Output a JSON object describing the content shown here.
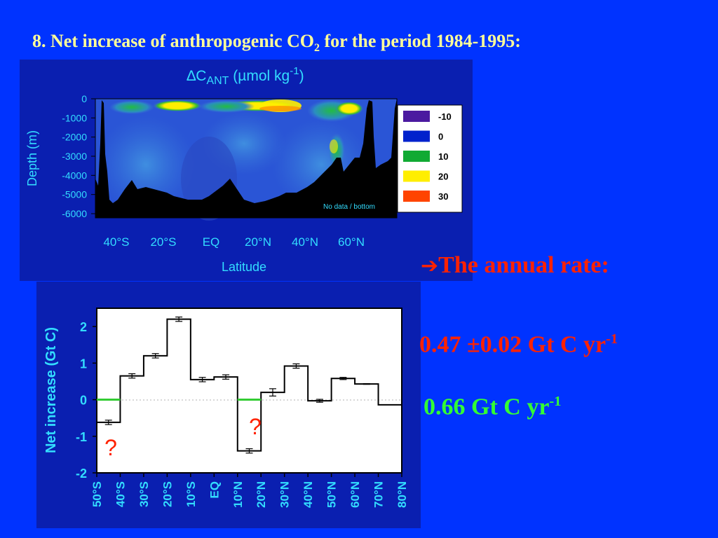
{
  "slide": {
    "title_prefix": "8. Net increase of anthropogenic CO",
    "title_sub": "2",
    "title_suffix": " for the period 1984-1995:"
  },
  "side": {
    "arrow_icon": "arrow-right-icon",
    "rate_heading": "The annual rate:",
    "rate1_value": "0.47 ±0.02 Gt C yr",
    "rate1_exp": "-1",
    "rate2_value": "0.66 Gt C yr",
    "rate2_exp": "-1"
  },
  "chart_data": [
    {
      "type": "heatmap",
      "title_main": "∆C",
      "title_sub": "ANT",
      "title_rest": " (µmol kg",
      "title_sup": "-1",
      "title_end": ")",
      "xlabel": "Latitude",
      "ylabel": "Depth (m)",
      "x_tick_labels": [
        "40°S",
        "20°S",
        "EQ",
        "20°N",
        "40°N",
        "60°N"
      ],
      "y_tick_labels": [
        "0",
        "-1000",
        "-2000",
        "-3000",
        "-4000",
        "-5000",
        "-6000"
      ],
      "ylim": [
        -6000,
        0
      ],
      "legend": [
        {
          "label": "-10",
          "color": "#4b1aa0"
        },
        {
          "label": "0",
          "color": "#0022cc"
        },
        {
          "label": "10",
          "color": "#11aa33"
        },
        {
          "label": "20",
          "color": "#ffee00"
        },
        {
          "label": "30",
          "color": "#ff4400"
        }
      ],
      "no_data_label": "No data / bottom"
    },
    {
      "type": "bar",
      "ylabel": "Net increase (Gt C)",
      "ylim": [
        -2,
        2.5
      ],
      "y_tick_labels": [
        "2",
        "1",
        "0",
        "-1",
        "-2"
      ],
      "y_ticks": [
        2,
        1,
        0,
        -1,
        -2
      ],
      "x_tick_labels": [
        "50°S",
        "40°S",
        "30°S",
        "20°S",
        "10°S",
        "EQ",
        "10°N",
        "20°N",
        "30°N",
        "40°N",
        "50°N",
        "60°N",
        "70°N",
        "80°N"
      ],
      "bins": [
        {
          "value": -0.62,
          "err": 0.06
        },
        {
          "value": 0.65,
          "err": 0.06
        },
        {
          "value": 1.2,
          "err": 0.06
        },
        {
          "value": 2.2,
          "err": 0.06
        },
        {
          "value": 0.55,
          "err": 0.06
        },
        {
          "value": 0.62,
          "err": 0.06
        },
        {
          "value": -1.4,
          "err": 0.06
        },
        {
          "value": 0.2,
          "err": 0.1
        },
        {
          "value": 0.92,
          "err": 0.06
        },
        {
          "value": -0.03,
          "err": 0.04
        },
        {
          "value": 0.58,
          "err": 0.03
        },
        {
          "value": 0.43,
          "err": 0.01
        },
        {
          "value": -0.14,
          "err": 0.0
        }
      ],
      "zero_segments": [
        0,
        6
      ],
      "unknown_markers": [
        {
          "label": "?",
          "bin": 0
        },
        {
          "label": "?",
          "bin": 6
        }
      ],
      "colors": {
        "step": "#000000",
        "zero": "#33cc33",
        "unknown": "#ff2200"
      }
    }
  ]
}
